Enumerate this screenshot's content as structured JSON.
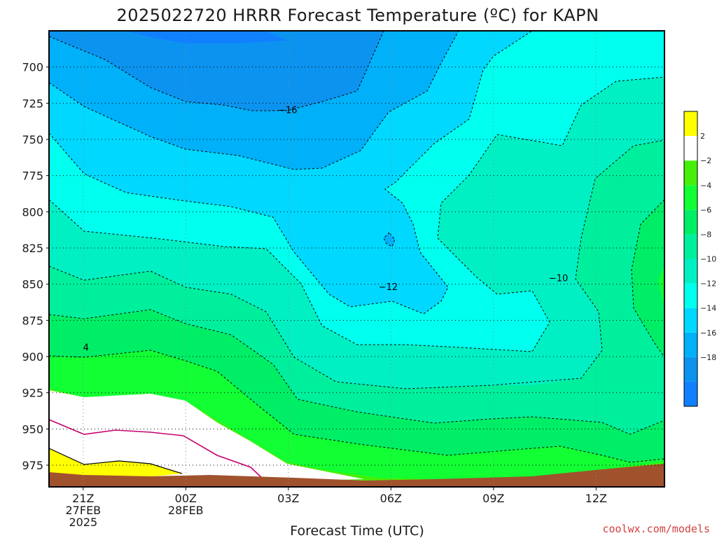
{
  "chart_data": {
    "type": "heatmap",
    "title": "2025022720 HRRR Forecast Temperature (ºC) for KAPN",
    "xlabel": "Forecast Time (UTC)",
    "ylabel": "",
    "credit": "coolwx.com/models",
    "x_ticks": [
      {
        "lines": [
          "21Z",
          "27FEB",
          "2025"
        ]
      },
      {
        "lines": [
          "00Z",
          "28FEB"
        ]
      },
      {
        "lines": [
          "03Z"
        ]
      },
      {
        "lines": [
          "06Z"
        ]
      },
      {
        "lines": [
          "09Z"
        ]
      },
      {
        "lines": [
          "12Z"
        ]
      }
    ],
    "x_range_hours": [
      -1,
      17
    ],
    "x_tick_hours": [
      0,
      3,
      6,
      9,
      12,
      15
    ],
    "y_ticks": [
      700,
      725,
      750,
      775,
      800,
      825,
      850,
      875,
      900,
      925,
      950,
      975
    ],
    "y_range": [
      675,
      990
    ],
    "y_inverted": true,
    "grid": true,
    "colorbar": {
      "levels": [
        -18,
        -16,
        -14,
        -12,
        -10,
        -8,
        -6,
        -4,
        -2,
        2
      ],
      "labels": [
        "2",
        "−2",
        "−4",
        "−6",
        "−8",
        "−10",
        "−12",
        "−14",
        "−16",
        "−18"
      ],
      "colors": [
        "#1180ff",
        "#0c93ef",
        "#00b0f8",
        "#00d8ff",
        "#00ffee",
        "#00f0c4",
        "#00ef9c",
        "#00ee66",
        "#11ff33",
        "#44f007",
        "#ffffff",
        "#ffff00"
      ]
    },
    "contour_labels": [
      {
        "text": "−16",
        "hour": 5.98,
        "pressure": 730
      },
      {
        "text": "−12",
        "hour": 8.92,
        "pressure": 852
      },
      {
        "text": "−10",
        "hour": 13.9,
        "pressure": 846
      },
      {
        "text": "4",
        "hour": 0.08,
        "pressure": 894
      }
    ],
    "temperature_field_note": "temperatures in degC as labeled by contours"
  }
}
